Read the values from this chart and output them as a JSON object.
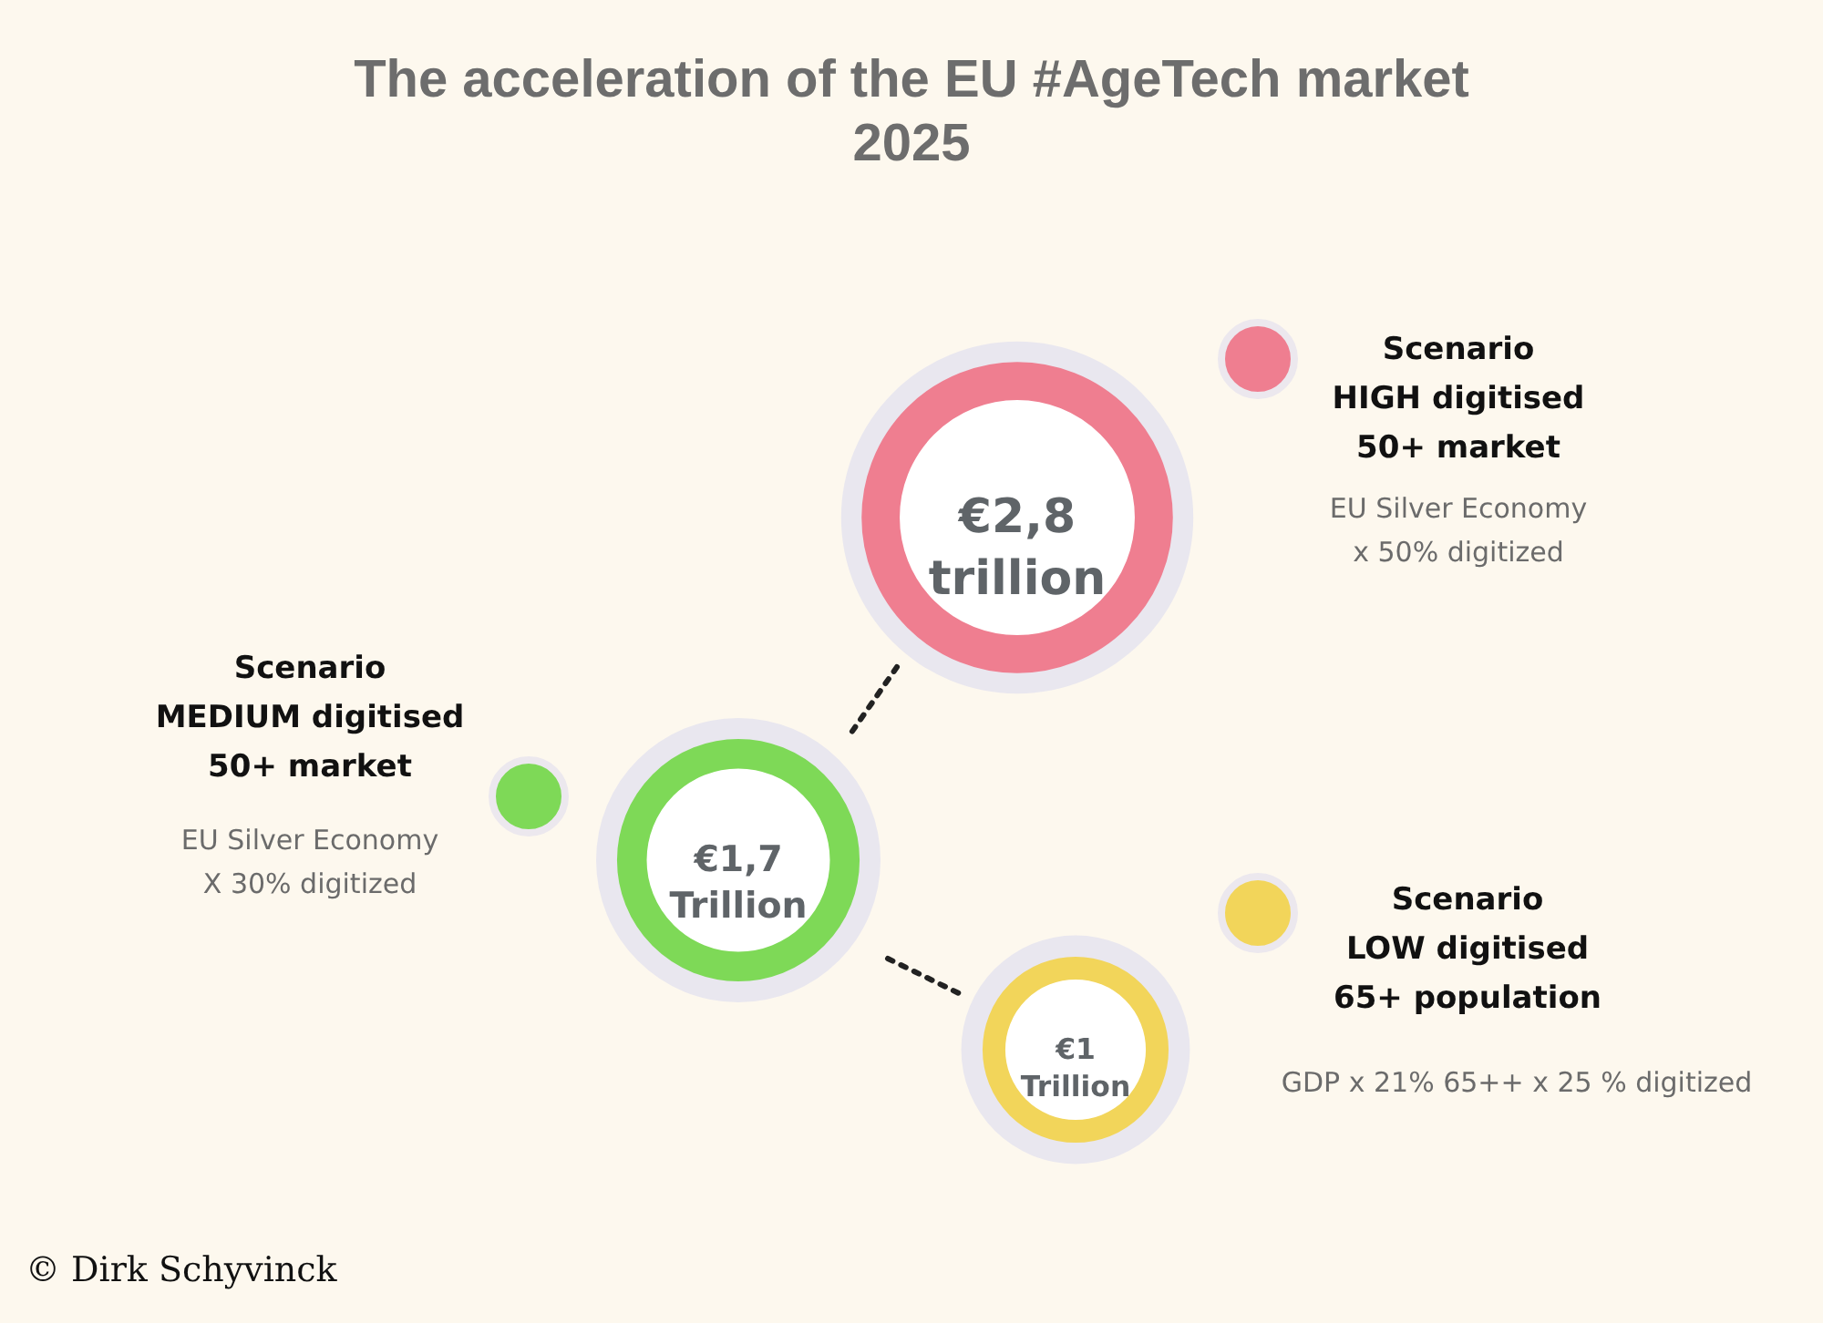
{
  "chart_data": {
    "type": "other",
    "title": "The acceleration of the  EU #AgeTech market",
    "subtitle": "2025",
    "categories": [
      "Scenario\nHIGH digitised\n50+ market",
      "Scenario\nMEDIUM digitised\n50+ market",
      "Scenario\nLOW digitised\n65+ population"
    ],
    "values": [
      2.8,
      1.7,
      1
    ],
    "value_labels": [
      "€2,8\ntrillion",
      "€1,7\nTrillion",
      "€1\nTrillion"
    ],
    "colors": [
      "#ef7e90",
      "#7ed957",
      "#f2d55a"
    ],
    "annotations": [
      "EU Silver Economy\n  x 50% digitized",
      "EU Silver Economy\nX 30% digitized",
      "GDP x 21% 65++ x 25 % digitized",
      "© Dirk Schyvinck"
    ]
  }
}
